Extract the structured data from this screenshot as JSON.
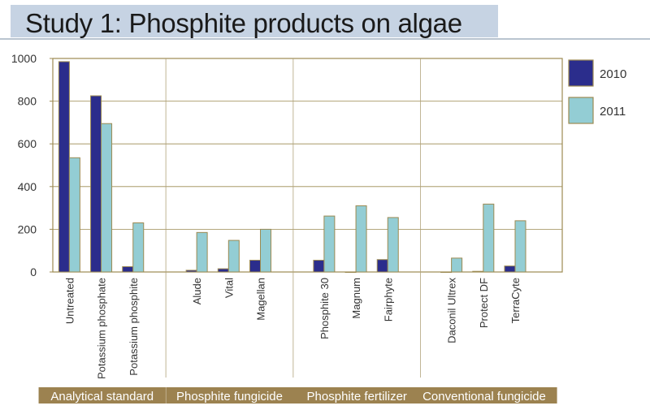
{
  "title": "Study 1: Phosphite products on algae",
  "colors": {
    "s2010": "#2b2d8c",
    "s2011": "#93cdd4",
    "border": "#9c8a52",
    "grid": "#9c8a52",
    "group_label_bg": "#9c8250",
    "group_label_text": "#ffffff"
  },
  "chart_data": {
    "type": "bar",
    "title": "Study 1: Phosphite products on algae",
    "xlabel": "",
    "ylabel": "",
    "ylim": [
      0,
      1000
    ],
    "yticks": [
      "1000",
      "800",
      "600",
      "400",
      "200",
      "0"
    ],
    "grid": true,
    "legend_position": "right",
    "categories": [
      "Untreated",
      "Potassium phosphate",
      "Potassium phosphite",
      "Alude",
      "Vital",
      "Magellan",
      "Phosphite 30",
      "Magnum",
      "Fairphyte",
      "Daconil Ultrex",
      "Protect DF",
      "TerraCyte"
    ],
    "groups": [
      {
        "label": "Analytical standard",
        "categories": [
          "Untreated",
          "Potassium phosphate",
          "Potassium phosphite"
        ]
      },
      {
        "label": "Phosphite fungicide",
        "categories": [
          "Alude",
          "Vital",
          "Magellan"
        ]
      },
      {
        "label": "Phosphite fertilizer",
        "categories": [
          "Phosphite 30",
          "Magnum",
          "Fairphyte"
        ]
      },
      {
        "label": "Conventional fungicide",
        "categories": [
          "Daconil Ultrex",
          "Protect DF",
          "TerraCyte"
        ]
      }
    ],
    "series": [
      {
        "name": "2010",
        "values": [
          985,
          825,
          25,
          8,
          15,
          55,
          55,
          0,
          58,
          0,
          3,
          28
        ]
      },
      {
        "name": "2011",
        "values": [
          535,
          695,
          230,
          185,
          148,
          200,
          262,
          310,
          255,
          65,
          318,
          240
        ]
      }
    ]
  }
}
